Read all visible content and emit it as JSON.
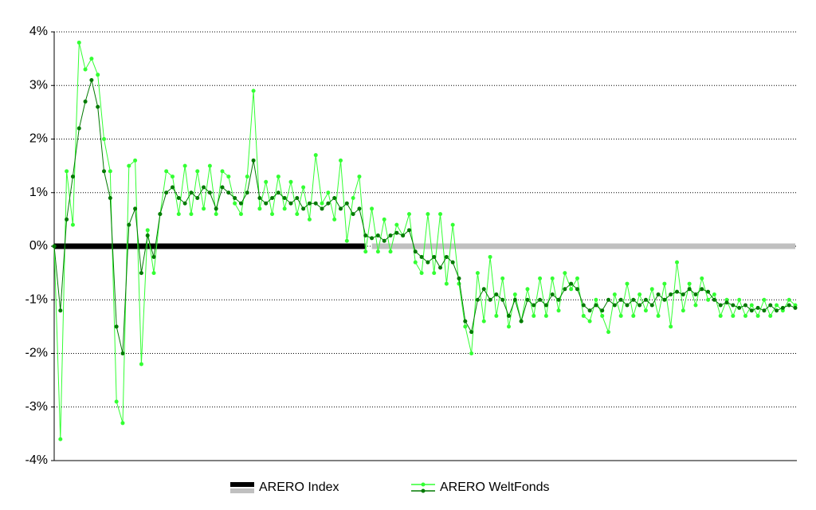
{
  "chart_data": {
    "type": "line",
    "ylim": [
      -4,
      4
    ],
    "yticks": [
      {
        "value": -4,
        "label": "-4%"
      },
      {
        "value": -3,
        "label": "-3%"
      },
      {
        "value": -2,
        "label": "-2%"
      },
      {
        "value": -1,
        "label": "-1%"
      },
      {
        "value": 0,
        "label": "0%"
      },
      {
        "value": 1,
        "label": "1%"
      },
      {
        "value": 2,
        "label": "2%"
      },
      {
        "value": 3,
        "label": "3%"
      },
      {
        "value": 4,
        "label": "4%"
      }
    ],
    "grid": true,
    "legend": "bottom",
    "series": [
      {
        "name": "ARERO Index",
        "color": "#000000",
        "width": 7,
        "markers": false,
        "values": [
          0,
          0,
          0,
          0,
          0,
          0,
          0,
          0,
          0,
          0,
          0,
          0,
          0,
          0,
          0,
          0,
          0,
          0,
          0,
          0,
          0,
          0,
          0,
          0,
          0,
          0,
          0,
          0,
          0,
          0,
          0,
          0,
          0,
          0,
          0,
          0,
          0,
          0,
          0,
          0,
          0,
          0,
          0,
          0,
          0,
          0,
          0,
          0,
          0,
          0,
          0,
          null,
          null,
          null,
          null,
          null,
          null,
          null,
          null,
          null,
          null,
          null,
          null,
          null,
          null,
          null,
          null,
          null,
          null,
          null,
          null,
          null,
          null,
          null,
          null,
          null,
          null,
          null,
          null,
          null,
          null,
          null,
          null,
          null,
          null,
          null,
          null,
          null,
          null,
          null,
          null,
          null,
          null,
          null,
          null,
          null,
          null,
          null,
          null,
          null,
          null,
          null,
          null,
          null,
          null,
          null,
          null,
          null,
          null,
          null,
          null,
          null,
          null,
          null,
          null,
          null,
          null,
          null,
          null,
          null
        ]
      },
      {
        "name": "ARERO Index",
        "color": "#c0c0c0",
        "width": 7,
        "markers": false,
        "values": [
          null,
          null,
          null,
          null,
          null,
          null,
          null,
          null,
          null,
          null,
          null,
          null,
          null,
          null,
          null,
          null,
          null,
          null,
          null,
          null,
          null,
          null,
          null,
          null,
          null,
          null,
          null,
          null,
          null,
          null,
          null,
          null,
          null,
          null,
          null,
          null,
          null,
          null,
          null,
          null,
          null,
          null,
          null,
          null,
          null,
          null,
          null,
          null,
          null,
          null,
          null,
          0,
          0,
          0,
          0,
          0,
          0,
          0,
          0,
          0,
          0,
          0,
          0,
          0,
          0,
          0,
          0,
          0,
          0,
          0,
          0,
          0,
          0,
          0,
          0,
          0,
          0,
          0,
          0,
          0,
          0,
          0,
          0,
          0,
          0,
          0,
          0,
          0,
          0,
          0,
          0,
          0,
          0,
          0,
          0,
          0,
          0,
          0,
          0,
          0,
          0,
          0,
          0,
          0,
          0,
          0,
          0,
          0,
          0,
          0,
          0,
          0,
          0,
          0,
          0,
          0,
          0,
          0,
          0,
          0
        ]
      },
      {
        "name": "ARERO WeltFonds",
        "color": "#33ff33",
        "width": 1,
        "markers": true,
        "values": [
          0.0,
          -3.6,
          1.4,
          0.4,
          3.8,
          3.3,
          3.5,
          3.2,
          2.0,
          1.4,
          -2.9,
          -3.3,
          1.5,
          1.6,
          -2.2,
          0.3,
          -0.5,
          0.6,
          1.4,
          1.3,
          0.6,
          1.5,
          0.6,
          1.4,
          0.7,
          1.5,
          0.6,
          1.4,
          1.3,
          0.8,
          0.6,
          1.3,
          2.9,
          0.7,
          1.2,
          0.6,
          1.3,
          0.7,
          1.2,
          0.6,
          1.1,
          0.5,
          1.7,
          0.8,
          1.0,
          0.5,
          1.6,
          0.1,
          0.9,
          1.3,
          -0.1,
          0.7,
          -0.1,
          0.5,
          -0.1,
          0.4,
          0.2,
          0.6,
          -0.3,
          -0.5,
          0.6,
          -0.5,
          0.6,
          -0.7,
          0.4,
          -0.7,
          -1.5,
          -2.0,
          -0.5,
          -1.4,
          -0.2,
          -1.3,
          -0.6,
          -1.5,
          -0.9,
          -1.4,
          -0.8,
          -1.3,
          -0.6,
          -1.3,
          -0.6,
          -1.2,
          -0.5,
          -0.8,
          -0.6,
          -1.3,
          -1.4,
          -1.0,
          -1.3,
          -1.6,
          -0.9,
          -1.3,
          -0.7,
          -1.3,
          -0.9,
          -1.2,
          -0.8,
          -1.3,
          -0.7,
          -1.5,
          -0.3,
          -1.2,
          -0.7,
          -1.1,
          -0.6,
          -1.0,
          -0.9,
          -1.3,
          -1.0,
          -1.3,
          -1.0,
          -1.3,
          -1.1,
          -1.3,
          -1.0,
          -1.3,
          -1.1,
          -1.2,
          -1.0,
          -1.1
        ]
      },
      {
        "name": "ARERO WeltFonds",
        "color": "#007a00",
        "width": 1,
        "markers": true,
        "values": [
          0.0,
          -1.2,
          0.5,
          1.3,
          2.2,
          2.7,
          3.1,
          2.6,
          1.4,
          0.9,
          -1.5,
          -2.0,
          0.4,
          0.7,
          -0.5,
          0.2,
          -0.2,
          0.6,
          1.0,
          1.1,
          0.9,
          0.8,
          1.0,
          0.9,
          1.1,
          1.0,
          0.7,
          1.1,
          1.0,
          0.9,
          0.8,
          1.0,
          1.6,
          0.9,
          0.8,
          0.9,
          1.0,
          0.9,
          0.8,
          0.9,
          0.7,
          0.8,
          0.8,
          0.7,
          0.8,
          0.9,
          0.7,
          0.8,
          0.6,
          0.7,
          0.2,
          0.15,
          0.2,
          0.1,
          0.2,
          0.25,
          0.2,
          0.3,
          -0.1,
          -0.2,
          -0.3,
          -0.2,
          -0.4,
          -0.2,
          -0.3,
          -0.6,
          -1.4,
          -1.6,
          -1.0,
          -0.8,
          -1.0,
          -0.9,
          -1.0,
          -1.3,
          -1.0,
          -1.4,
          -1.0,
          -1.1,
          -1.0,
          -1.1,
          -0.9,
          -1.0,
          -0.8,
          -0.7,
          -0.8,
          -1.1,
          -1.2,
          -1.1,
          -1.2,
          -1.0,
          -1.1,
          -1.0,
          -1.1,
          -1.0,
          -1.1,
          -1.0,
          -1.1,
          -0.9,
          -1.0,
          -0.9,
          -0.85,
          -0.9,
          -0.8,
          -0.9,
          -0.8,
          -0.85,
          -1.0,
          -1.1,
          -1.05,
          -1.1,
          -1.15,
          -1.1,
          -1.2,
          -1.15,
          -1.2,
          -1.1,
          -1.2,
          -1.15,
          -1.1,
          -1.15
        ]
      }
    ]
  }
}
